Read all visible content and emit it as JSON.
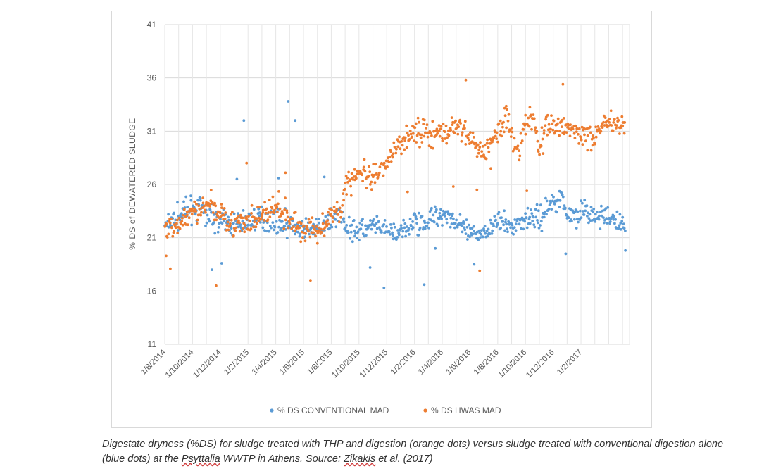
{
  "chart_data": {
    "type": "scatter",
    "title": "",
    "ylabel": "% DS of DEWATERED SLUDGE",
    "xlabel": "",
    "ylim": [
      11,
      41
    ],
    "yticks": [
      11,
      16,
      21,
      26,
      31,
      36,
      41
    ],
    "x_unit": "months since 1/8/2014",
    "xlim": [
      0,
      33.5
    ],
    "xticks": [
      {
        "label": "1/8/2014",
        "month": 0
      },
      {
        "label": "1/10/2014",
        "month": 2
      },
      {
        "label": "1/12/2014",
        "month": 4
      },
      {
        "label": "1/2/2015",
        "month": 6
      },
      {
        "label": "1/4/2015",
        "month": 8
      },
      {
        "label": "1/6/2015",
        "month": 10
      },
      {
        "label": "1/8/2015",
        "month": 12
      },
      {
        "label": "1/10/2015",
        "month": 14
      },
      {
        "label": "1/12/2015",
        "month": 16
      },
      {
        "label": "1/2/2016",
        "month": 18
      },
      {
        "label": "1/4/2016",
        "month": 20
      },
      {
        "label": "1/6/2016",
        "month": 22
      },
      {
        "label": "1/8/2016",
        "month": 24
      },
      {
        "label": "1/10/2016",
        "month": 26
      },
      {
        "label": "1/12/2016",
        "month": 28
      },
      {
        "label": "1/2/2017",
        "month": 30
      }
    ],
    "grid": true,
    "legend_position": "bottom",
    "series": [
      {
        "name": "% DS CONVENTIONAL MAD",
        "color": "#5b9bd5",
        "trend": [
          [
            0,
            22
          ],
          [
            1.5,
            23.5
          ],
          [
            2.5,
            23.8
          ],
          [
            4,
            22.5
          ],
          [
            5,
            22.2
          ],
          [
            6,
            22.6
          ],
          [
            7,
            22.8
          ],
          [
            8,
            22.5
          ],
          [
            9,
            22.2
          ],
          [
            10,
            21.6
          ],
          [
            11,
            21.8
          ],
          [
            12,
            22.5
          ],
          [
            12.5,
            23.5
          ],
          [
            13,
            22.2
          ],
          [
            14,
            21.7
          ],
          [
            15,
            22
          ],
          [
            16,
            21.6
          ],
          [
            17,
            21.3
          ],
          [
            18,
            22.5
          ],
          [
            19,
            22.6
          ],
          [
            20,
            23.5
          ],
          [
            21,
            22.5
          ],
          [
            22,
            21.2
          ],
          [
            23,
            21.5
          ],
          [
            24,
            22.5
          ],
          [
            25,
            22
          ],
          [
            26,
            23
          ],
          [
            27,
            22.7
          ],
          [
            28,
            24.5
          ],
          [
            28.6,
            24.8
          ],
          [
            29,
            23
          ],
          [
            30,
            23.5
          ],
          [
            31,
            23
          ],
          [
            32,
            22.8
          ],
          [
            33,
            22.3
          ]
        ],
        "outliers": [
          [
            5.7,
            32
          ],
          [
            8.9,
            33.8
          ],
          [
            9.4,
            32
          ],
          [
            11.5,
            26.7
          ],
          [
            14.8,
            18.2
          ],
          [
            15.8,
            16.3
          ],
          [
            18.7,
            16.6
          ],
          [
            3.4,
            18
          ],
          [
            4.1,
            18.6
          ],
          [
            22.3,
            18.5
          ],
          [
            28.9,
            19.5
          ],
          [
            33.2,
            19.8
          ],
          [
            19.5,
            20
          ],
          [
            8.2,
            26.6
          ],
          [
            5.2,
            26.5
          ]
        ]
      },
      {
        "name": "% DS HWAS MAD",
        "color": "#ed7d31",
        "trend": [
          [
            0,
            21.8
          ],
          [
            1,
            22.3
          ],
          [
            2,
            23.5
          ],
          [
            3,
            24
          ],
          [
            4,
            23.5
          ],
          [
            5,
            22.3
          ],
          [
            6,
            22.2
          ],
          [
            7,
            23.2
          ],
          [
            8,
            23.7
          ],
          [
            9,
            22.6
          ],
          [
            10,
            21.8
          ],
          [
            11,
            21.7
          ],
          [
            12,
            23
          ],
          [
            12.6,
            23.5
          ],
          [
            13,
            25.8
          ],
          [
            14,
            27.2
          ],
          [
            15,
            26.2
          ],
          [
            16,
            27.8
          ],
          [
            17,
            30
          ],
          [
            18,
            31.2
          ],
          [
            19,
            30.7
          ],
          [
            20,
            30.6
          ],
          [
            21,
            31.7
          ],
          [
            22,
            30.4
          ],
          [
            23,
            29
          ],
          [
            24,
            31
          ],
          [
            24.6,
            32.4
          ],
          [
            25,
            31
          ],
          [
            25.5,
            29
          ],
          [
            26,
            31.7
          ],
          [
            26.6,
            32.3
          ],
          [
            27,
            29
          ],
          [
            27.5,
            31.8
          ],
          [
            28,
            31.6
          ],
          [
            29,
            31.5
          ],
          [
            30,
            30.6
          ],
          [
            31,
            30.5
          ],
          [
            31.5,
            31.8
          ],
          [
            32,
            32
          ],
          [
            33,
            31.6
          ]
        ],
        "outliers": [
          [
            0.1,
            19.3
          ],
          [
            0.4,
            18.1
          ],
          [
            3.7,
            16.5
          ],
          [
            10.5,
            17
          ],
          [
            21.7,
            35.8
          ],
          [
            22.7,
            17.9
          ],
          [
            28.7,
            35.4
          ],
          [
            5.9,
            28
          ],
          [
            8.7,
            27.1
          ],
          [
            17.5,
            25.3
          ],
          [
            20.8,
            25.8
          ],
          [
            22.5,
            25.5
          ],
          [
            23.5,
            27.5
          ],
          [
            26.1,
            25.4
          ]
        ]
      }
    ]
  },
  "caption": {
    "part1": "Digestate dryness (%DS) for sludge treated with THP and digestion (orange dots) versus sludge treated with conventional digestion alone (blue dots) at the ",
    "psyttalia": "Psyttalia",
    "part2": " WWTP in Athens. Source: ",
    "zikakis": "Zikakis",
    "part3": " et al. (2017)"
  }
}
